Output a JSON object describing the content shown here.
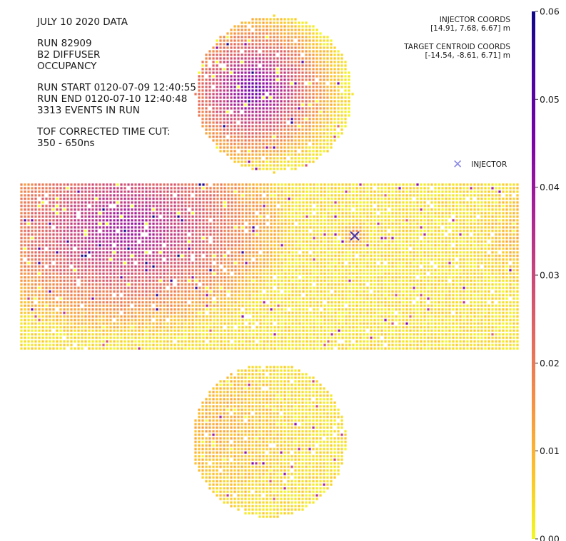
{
  "info": {
    "title": "JULY 10 2020 DATA",
    "run": "RUN 82909",
    "diffuser": "B2 DIFFUSER",
    "occupancy": "OCCUPANCY",
    "run_start": "RUN START 0120-07-09 12:40:55",
    "run_end": "RUN END 0120-07-10 12:40:48",
    "events": "3313 EVENTS IN RUN",
    "tof_label": "TOF CORRECTED TIME CUT:",
    "tof_range": "350 - 650ns"
  },
  "coords": {
    "injector_label": "INJECTOR COORDS",
    "injector_value": "[14.91, 7.68, 6.67] m",
    "target_label": "TARGET CENTROID COORDS",
    "target_value": "[-14.54, -8.61, 6.71] m"
  },
  "legend": {
    "injector": "INJECTOR",
    "marker_color": "#8a8ae6"
  },
  "chart_data": {
    "type": "heatmap",
    "title": "",
    "colormap": "plasma_r",
    "colorbar": {
      "min": 0.0,
      "max": 0.06,
      "ticks": [
        0.0,
        0.01,
        0.02,
        0.03,
        0.04,
        0.05,
        0.06
      ],
      "tick_labels": [
        "0.00",
        "0.01",
        "0.02",
        "0.03",
        "0.04",
        "0.05",
        "0.06"
      ]
    },
    "regions": [
      {
        "name": "top cap",
        "peak_value": 0.05,
        "background_value": 0.003
      },
      {
        "name": "barrel",
        "peak_value": 0.042,
        "background_value": 0.004
      },
      {
        "name": "bottom cap",
        "peak_value": 0.012,
        "background_value": 0.004
      }
    ],
    "injector_marker": "x",
    "grid": false
  }
}
